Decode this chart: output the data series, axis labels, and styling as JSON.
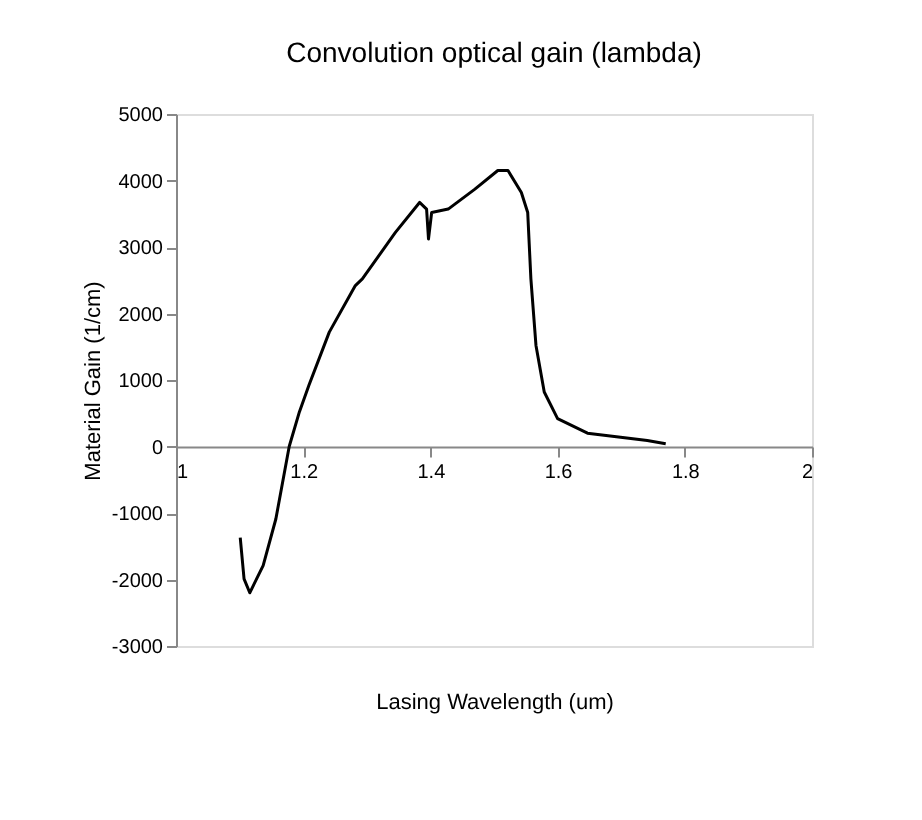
{
  "chart_data": {
    "type": "line",
    "title": "Convolution optical gain (lambda)",
    "xlabel": "Lasing Wavelength (um)",
    "ylabel": "Material Gain (1/cm)",
    "xlim": [
      1,
      2
    ],
    "xticks": [
      1,
      1.2,
      1.4,
      1.6,
      1.8,
      2
    ],
    "ylim": [
      -3000,
      5000
    ],
    "yticks": [
      -3000,
      -2000,
      -1000,
      0,
      1000,
      2000,
      3000,
      4000,
      5000
    ],
    "grid": false,
    "marker": "none",
    "line_style": "solid",
    "series": [
      {
        "color": "#000000",
        "x": [
          1.101,
          1.107,
          1.116,
          1.137,
          1.157,
          1.178,
          1.194,
          1.209,
          1.241,
          1.282,
          1.293,
          1.345,
          1.383,
          1.394,
          1.397,
          1.402,
          1.428,
          1.47,
          1.506,
          1.522,
          1.543,
          1.553,
          1.558,
          1.566,
          1.579,
          1.6,
          1.647,
          1.699,
          1.741,
          1.77
        ],
        "values": [
          -1370,
          -1990,
          -2200,
          -1790,
          -1090,
          0,
          520,
          920,
          1720,
          2420,
          2520,
          3220,
          3670,
          3570,
          3120,
          3520,
          3570,
          3870,
          4150,
          4150,
          3820,
          3520,
          2520,
          1520,
          820,
          420,
          200,
          140,
          90,
          40
        ]
      }
    ]
  }
}
